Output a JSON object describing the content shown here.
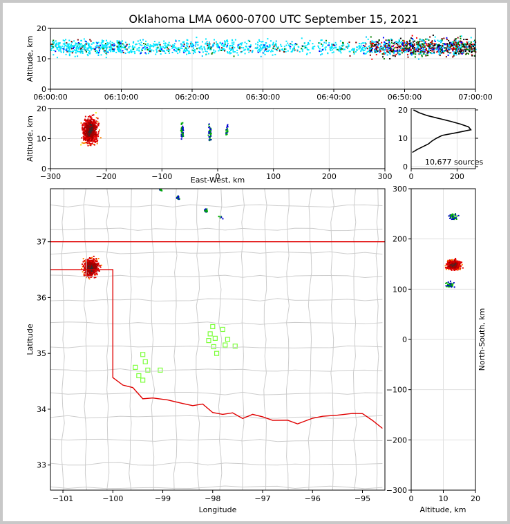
{
  "chart_data": [
    {
      "type": "heatmap",
      "panel": "time-altitude",
      "title": "Oklahoma LMA 0600-0700 UTC September 15, 2021",
      "xlabel": "",
      "ylabel": "Altitude, km",
      "xticks": [
        "06:00:00",
        "06:10:00",
        "06:20:00",
        "06:30:00",
        "06:40:00",
        "06:50:00",
        "07:00:00"
      ],
      "ylim": [
        0,
        20
      ],
      "yticks": [
        0,
        10,
        20
      ],
      "xlim_minutes": [
        0,
        60
      ],
      "activity": [
        {
          "t0": 0,
          "t1": 10,
          "level": "low"
        },
        {
          "t0": 10,
          "t1": 25,
          "level": "low"
        },
        {
          "t0": 25,
          "t1": 45,
          "level": "low"
        },
        {
          "t0": 45,
          "t1": 60,
          "level": "high"
        }
      ]
    },
    {
      "type": "heatmap",
      "panel": "east-west-altitude",
      "xlabel": "East-West, km",
      "ylabel": "Altitude, km",
      "xlim": [
        -300,
        300
      ],
      "xticks": [
        -300,
        -200,
        -100,
        0,
        100,
        200,
        300
      ],
      "ylim": [
        0,
        20
      ],
      "yticks": [
        0,
        10,
        20
      ],
      "clusters": [
        {
          "x": -230,
          "z": 13,
          "size": "large"
        },
        {
          "x": -65,
          "z": 13,
          "size": "small"
        },
        {
          "x": -15,
          "z": 12,
          "size": "small"
        },
        {
          "x": 15,
          "z": 13,
          "size": "tiny"
        }
      ]
    },
    {
      "type": "line",
      "panel": "altitude-histogram",
      "xlim": [
        0,
        280
      ],
      "xticks": [
        0,
        200
      ],
      "ylim": [
        0,
        20
      ],
      "yticks": [
        0,
        10,
        20
      ],
      "annotation": "10,677 sources",
      "counts": [
        {
          "z": 5,
          "n": 5
        },
        {
          "z": 6,
          "n": 25
        },
        {
          "z": 7,
          "n": 50
        },
        {
          "z": 8,
          "n": 75
        },
        {
          "z": 9,
          "n": 90
        },
        {
          "z": 10,
          "n": 110
        },
        {
          "z": 11,
          "n": 135
        },
        {
          "z": 12,
          "n": 200
        },
        {
          "z": 13,
          "n": 260
        },
        {
          "z": 14,
          "n": 250
        },
        {
          "z": 15,
          "n": 215
        },
        {
          "z": 16,
          "n": 170
        },
        {
          "z": 17,
          "n": 120
        },
        {
          "z": 18,
          "n": 70
        },
        {
          "z": 19,
          "n": 35
        },
        {
          "z": 20,
          "n": 10
        }
      ]
    },
    {
      "type": "scatter",
      "panel": "plan-view-map",
      "xlabel": "Longitude",
      "ylabel": "Latitude",
      "xlim": [
        -101.25,
        -94.55
      ],
      "xticks": [
        -101,
        -100,
        -99,
        -98,
        -97,
        -96,
        -95
      ],
      "ylim": [
        32.55,
        37.95
      ],
      "yticks": [
        33,
        34,
        35,
        36,
        37
      ],
      "stations": [
        {
          "lon": -98.0,
          "lat": 35.48
        },
        {
          "lon": -97.8,
          "lat": 35.43
        },
        {
          "lon": -98.05,
          "lat": 35.35
        },
        {
          "lon": -97.95,
          "lat": 35.27
        },
        {
          "lon": -97.7,
          "lat": 35.25
        },
        {
          "lon": -98.08,
          "lat": 35.23
        },
        {
          "lon": -97.55,
          "lat": 35.13
        },
        {
          "lon": -97.75,
          "lat": 35.15
        },
        {
          "lon": -97.98,
          "lat": 35.12
        },
        {
          "lon": -97.92,
          "lat": 35.0
        },
        {
          "lon": -99.4,
          "lat": 34.98
        },
        {
          "lon": -99.35,
          "lat": 34.85
        },
        {
          "lon": -99.55,
          "lat": 34.75
        },
        {
          "lon": -99.3,
          "lat": 34.7
        },
        {
          "lon": -99.05,
          "lat": 34.7
        },
        {
          "lon": -99.48,
          "lat": 34.6
        },
        {
          "lon": -99.4,
          "lat": 34.52
        }
      ],
      "storms": [
        {
          "lon": -100.45,
          "lat": 36.55,
          "size": "large"
        },
        {
          "lon": -98.7,
          "lat": 37.8,
          "size": "small"
        },
        {
          "lon": -98.15,
          "lat": 37.57,
          "size": "small"
        },
        {
          "lon": -97.85,
          "lat": 37.45,
          "size": "tiny"
        },
        {
          "lon": -99.05,
          "lat": 37.95,
          "size": "tiny"
        }
      ]
    },
    {
      "type": "heatmap",
      "panel": "altitude-north-south",
      "xlabel": "Altitude, km",
      "ylabel": "North-South, km",
      "xlim": [
        0,
        20
      ],
      "xticks": [
        0,
        10,
        20
      ],
      "ylim": [
        -300,
        300
      ],
      "yticks": [
        -300,
        -200,
        -100,
        0,
        100,
        200,
        300
      ],
      "clusters": [
        {
          "z": 13,
          "y": 150,
          "size": "large"
        },
        {
          "z": 13,
          "y": 245,
          "size": "small"
        },
        {
          "z": 12,
          "y": 110,
          "size": "small"
        }
      ]
    }
  ]
}
